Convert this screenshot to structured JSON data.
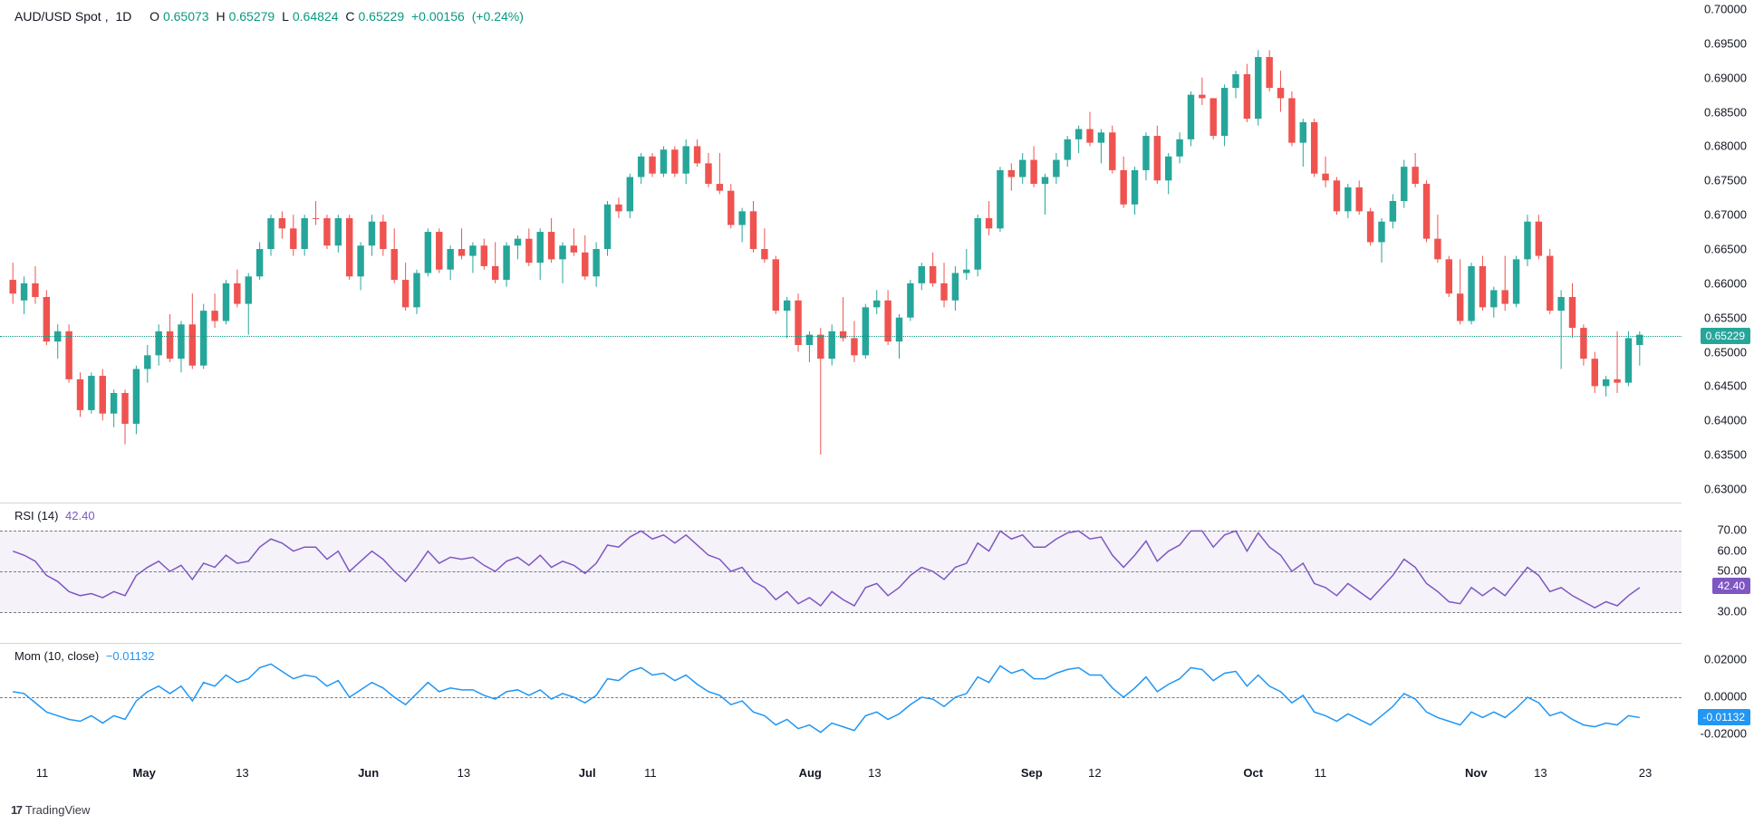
{
  "header": {
    "symbol": "AUD/USD Spot",
    "interval": "1D",
    "o_label": "O",
    "o_val": "0.65073",
    "h_label": "H",
    "h_val": "0.65279",
    "l_label": "L",
    "l_val": "0.64824",
    "c_label": "C",
    "c_val": "0.65229",
    "chg_val": "+0.00156",
    "chg_pct": "(+0.24%)"
  },
  "colors": {
    "up": "#26a69a",
    "down": "#ef5350",
    "teal": "#089981",
    "rsi": "#7e57c2",
    "mom": "#2196f3",
    "grid": "#787b86",
    "bg": "#ffffff",
    "rsi_fill": "rgba(126,87,194,0.08)"
  },
  "main": {
    "ylim": [
      0.63,
      0.7
    ],
    "yticks": [
      "0.70000",
      "0.69500",
      "0.69000",
      "0.68500",
      "0.68000",
      "0.67500",
      "0.67000",
      "0.66500",
      "0.66000",
      "0.65500",
      "0.65000",
      "0.64500",
      "0.64000",
      "0.63500",
      "0.63000"
    ],
    "current_price": "0.65229",
    "candles": [
      [
        0.6605,
        0.663,
        0.657,
        0.6585,
        "d"
      ],
      [
        0.6575,
        0.661,
        0.6555,
        0.66,
        "u"
      ],
      [
        0.66,
        0.6625,
        0.657,
        0.658,
        "d"
      ],
      [
        0.658,
        0.659,
        0.651,
        0.6515,
        "d"
      ],
      [
        0.6515,
        0.654,
        0.649,
        0.653,
        "u"
      ],
      [
        0.653,
        0.654,
        0.6455,
        0.646,
        "d"
      ],
      [
        0.646,
        0.647,
        0.6405,
        0.6415,
        "d"
      ],
      [
        0.6415,
        0.647,
        0.641,
        0.6465,
        "u"
      ],
      [
        0.6465,
        0.6475,
        0.64,
        0.641,
        "d"
      ],
      [
        0.641,
        0.6445,
        0.639,
        0.644,
        "u"
      ],
      [
        0.644,
        0.6445,
        0.6365,
        0.6395,
        "d"
      ],
      [
        0.6395,
        0.648,
        0.638,
        0.6475,
        "u"
      ],
      [
        0.6475,
        0.651,
        0.6455,
        0.6495,
        "u"
      ],
      [
        0.6495,
        0.654,
        0.648,
        0.653,
        "u"
      ],
      [
        0.653,
        0.6555,
        0.6485,
        0.649,
        "d"
      ],
      [
        0.649,
        0.6545,
        0.647,
        0.654,
        "u"
      ],
      [
        0.654,
        0.6585,
        0.6475,
        0.648,
        "d"
      ],
      [
        0.648,
        0.657,
        0.6475,
        0.656,
        "u"
      ],
      [
        0.656,
        0.6585,
        0.6535,
        0.6545,
        "d"
      ],
      [
        0.6545,
        0.6605,
        0.654,
        0.66,
        "u"
      ],
      [
        0.66,
        0.662,
        0.6565,
        0.657,
        "d"
      ],
      [
        0.657,
        0.6615,
        0.6525,
        0.661,
        "u"
      ],
      [
        0.661,
        0.666,
        0.6605,
        0.665,
        "u"
      ],
      [
        0.665,
        0.67,
        0.664,
        0.6695,
        "u"
      ],
      [
        0.6695,
        0.6705,
        0.6665,
        0.668,
        "d"
      ],
      [
        0.668,
        0.67,
        0.664,
        0.665,
        "d"
      ],
      [
        0.665,
        0.67,
        0.664,
        0.6695,
        "u"
      ],
      [
        0.6695,
        0.672,
        0.6685,
        0.6695,
        "d"
      ],
      [
        0.6695,
        0.67,
        0.665,
        0.6655,
        "d"
      ],
      [
        0.6655,
        0.67,
        0.6645,
        0.6695,
        "u"
      ],
      [
        0.6695,
        0.67,
        0.6605,
        0.661,
        "d"
      ],
      [
        0.661,
        0.666,
        0.659,
        0.6655,
        "u"
      ],
      [
        0.6655,
        0.67,
        0.664,
        0.669,
        "u"
      ],
      [
        0.669,
        0.67,
        0.664,
        0.665,
        "d"
      ],
      [
        0.665,
        0.668,
        0.66,
        0.6605,
        "d"
      ],
      [
        0.6605,
        0.663,
        0.656,
        0.6565,
        "d"
      ],
      [
        0.6565,
        0.662,
        0.6555,
        0.6615,
        "u"
      ],
      [
        0.6615,
        0.668,
        0.661,
        0.6675,
        "u"
      ],
      [
        0.6675,
        0.668,
        0.6615,
        0.662,
        "d"
      ],
      [
        0.662,
        0.6655,
        0.6605,
        0.665,
        "u"
      ],
      [
        0.665,
        0.668,
        0.6635,
        0.664,
        "d"
      ],
      [
        0.664,
        0.666,
        0.6615,
        0.6655,
        "u"
      ],
      [
        0.6655,
        0.6665,
        0.662,
        0.6625,
        "d"
      ],
      [
        0.6625,
        0.666,
        0.66,
        0.6605,
        "d"
      ],
      [
        0.6605,
        0.666,
        0.6595,
        0.6655,
        "u"
      ],
      [
        0.6655,
        0.667,
        0.6635,
        0.6665,
        "u"
      ],
      [
        0.6665,
        0.668,
        0.6625,
        0.663,
        "d"
      ],
      [
        0.663,
        0.668,
        0.6605,
        0.6675,
        "u"
      ],
      [
        0.6675,
        0.6695,
        0.663,
        0.6635,
        "d"
      ],
      [
        0.6635,
        0.666,
        0.66,
        0.6655,
        "u"
      ],
      [
        0.6655,
        0.668,
        0.664,
        0.6645,
        "d"
      ],
      [
        0.6645,
        0.667,
        0.6605,
        0.661,
        "d"
      ],
      [
        0.661,
        0.666,
        0.6595,
        0.665,
        "u"
      ],
      [
        0.665,
        0.672,
        0.664,
        0.6715,
        "u"
      ],
      [
        0.6715,
        0.6725,
        0.6695,
        0.6705,
        "d"
      ],
      [
        0.6705,
        0.676,
        0.6695,
        0.6755,
        "u"
      ],
      [
        0.6755,
        0.679,
        0.6745,
        0.6785,
        "u"
      ],
      [
        0.6785,
        0.679,
        0.6755,
        0.676,
        "d"
      ],
      [
        0.676,
        0.68,
        0.6755,
        0.6795,
        "u"
      ],
      [
        0.6795,
        0.68,
        0.6755,
        0.676,
        "d"
      ],
      [
        0.676,
        0.681,
        0.6745,
        0.68,
        "u"
      ],
      [
        0.68,
        0.681,
        0.677,
        0.6775,
        "d"
      ],
      [
        0.6775,
        0.679,
        0.674,
        0.6745,
        "d"
      ],
      [
        0.6745,
        0.679,
        0.673,
        0.6735,
        "d"
      ],
      [
        0.6735,
        0.6745,
        0.668,
        0.6685,
        "d"
      ],
      [
        0.6685,
        0.671,
        0.666,
        0.6705,
        "u"
      ],
      [
        0.6705,
        0.672,
        0.6645,
        0.665,
        "d"
      ],
      [
        0.665,
        0.668,
        0.663,
        0.6635,
        "d"
      ],
      [
        0.6635,
        0.664,
        0.6555,
        0.656,
        "d"
      ],
      [
        0.656,
        0.658,
        0.652,
        0.6575,
        "u"
      ],
      [
        0.6575,
        0.6585,
        0.65,
        0.651,
        "d"
      ],
      [
        0.651,
        0.653,
        0.6485,
        0.6525,
        "u"
      ],
      [
        0.6525,
        0.6535,
        0.635,
        0.649,
        "d"
      ],
      [
        0.649,
        0.654,
        0.648,
        0.653,
        "u"
      ],
      [
        0.653,
        0.658,
        0.6515,
        0.652,
        "d"
      ],
      [
        0.652,
        0.6545,
        0.6485,
        0.6495,
        "d"
      ],
      [
        0.6495,
        0.657,
        0.649,
        0.6565,
        "u"
      ],
      [
        0.6565,
        0.659,
        0.6555,
        0.6575,
        "u"
      ],
      [
        0.6575,
        0.659,
        0.651,
        0.6515,
        "d"
      ],
      [
        0.6515,
        0.6555,
        0.649,
        0.655,
        "u"
      ],
      [
        0.655,
        0.6605,
        0.6545,
        0.66,
        "u"
      ],
      [
        0.66,
        0.663,
        0.659,
        0.6625,
        "u"
      ],
      [
        0.6625,
        0.6645,
        0.6595,
        0.66,
        "d"
      ],
      [
        0.66,
        0.663,
        0.6565,
        0.6575,
        "d"
      ],
      [
        0.6575,
        0.6625,
        0.656,
        0.6615,
        "u"
      ],
      [
        0.6615,
        0.665,
        0.6605,
        0.662,
        "u"
      ],
      [
        0.662,
        0.67,
        0.661,
        0.6695,
        "u"
      ],
      [
        0.6695,
        0.672,
        0.667,
        0.668,
        "d"
      ],
      [
        0.668,
        0.677,
        0.6675,
        0.6765,
        "u"
      ],
      [
        0.6765,
        0.6775,
        0.6735,
        0.6755,
        "d"
      ],
      [
        0.6755,
        0.679,
        0.6745,
        0.678,
        "u"
      ],
      [
        0.678,
        0.68,
        0.674,
        0.6745,
        "d"
      ],
      [
        0.6745,
        0.676,
        0.67,
        0.6755,
        "u"
      ],
      [
        0.6755,
        0.679,
        0.6745,
        0.678,
        "u"
      ],
      [
        0.678,
        0.6815,
        0.677,
        0.681,
        "u"
      ],
      [
        0.681,
        0.683,
        0.679,
        0.6825,
        "u"
      ],
      [
        0.6825,
        0.685,
        0.68,
        0.6805,
        "d"
      ],
      [
        0.6805,
        0.6825,
        0.6775,
        0.682,
        "u"
      ],
      [
        0.682,
        0.683,
        0.676,
        0.6765,
        "d"
      ],
      [
        0.6765,
        0.6785,
        0.671,
        0.6715,
        "d"
      ],
      [
        0.6715,
        0.677,
        0.67,
        0.6765,
        "u"
      ],
      [
        0.6765,
        0.682,
        0.675,
        0.6815,
        "u"
      ],
      [
        0.6815,
        0.683,
        0.6745,
        0.675,
        "d"
      ],
      [
        0.675,
        0.679,
        0.673,
        0.6785,
        "u"
      ],
      [
        0.6785,
        0.682,
        0.6775,
        0.681,
        "u"
      ],
      [
        0.681,
        0.688,
        0.68,
        0.6875,
        "u"
      ],
      [
        0.6875,
        0.69,
        0.686,
        0.687,
        "d"
      ],
      [
        0.687,
        0.687,
        0.681,
        0.6815,
        "d"
      ],
      [
        0.6815,
        0.689,
        0.68,
        0.6885,
        "u"
      ],
      [
        0.6885,
        0.691,
        0.687,
        0.6905,
        "u"
      ],
      [
        0.6905,
        0.692,
        0.6835,
        0.684,
        "d"
      ],
      [
        0.684,
        0.694,
        0.683,
        0.693,
        "u"
      ],
      [
        0.693,
        0.694,
        0.688,
        0.6885,
        "d"
      ],
      [
        0.6885,
        0.691,
        0.685,
        0.687,
        "d"
      ],
      [
        0.687,
        0.688,
        0.68,
        0.6805,
        "d"
      ],
      [
        0.6805,
        0.684,
        0.677,
        0.6835,
        "u"
      ],
      [
        0.6835,
        0.684,
        0.6755,
        0.676,
        "d"
      ],
      [
        0.676,
        0.6785,
        0.674,
        0.675,
        "d"
      ],
      [
        0.675,
        0.6755,
        0.67,
        0.6705,
        "d"
      ],
      [
        0.6705,
        0.6745,
        0.6695,
        0.674,
        "u"
      ],
      [
        0.674,
        0.675,
        0.67,
        0.6705,
        "d"
      ],
      [
        0.6705,
        0.671,
        0.6655,
        0.666,
        "d"
      ],
      [
        0.666,
        0.6695,
        0.663,
        0.669,
        "u"
      ],
      [
        0.669,
        0.673,
        0.668,
        0.672,
        "u"
      ],
      [
        0.672,
        0.678,
        0.671,
        0.677,
        "u"
      ],
      [
        0.677,
        0.679,
        0.674,
        0.6745,
        "d"
      ],
      [
        0.6745,
        0.675,
        0.666,
        0.6665,
        "d"
      ],
      [
        0.6665,
        0.67,
        0.663,
        0.6635,
        "d"
      ],
      [
        0.6635,
        0.664,
        0.658,
        0.6585,
        "d"
      ],
      [
        0.6585,
        0.6635,
        0.654,
        0.6545,
        "d"
      ],
      [
        0.6545,
        0.663,
        0.654,
        0.6625,
        "u"
      ],
      [
        0.6625,
        0.664,
        0.656,
        0.6565,
        "d"
      ],
      [
        0.6565,
        0.6595,
        0.655,
        0.659,
        "u"
      ],
      [
        0.659,
        0.664,
        0.656,
        0.657,
        "d"
      ],
      [
        0.657,
        0.664,
        0.6565,
        0.6635,
        "u"
      ],
      [
        0.6635,
        0.67,
        0.6625,
        0.669,
        "u"
      ],
      [
        0.669,
        0.67,
        0.6635,
        0.664,
        "d"
      ],
      [
        0.664,
        0.665,
        0.6555,
        0.656,
        "d"
      ],
      [
        0.656,
        0.659,
        0.6475,
        0.658,
        "u"
      ],
      [
        0.658,
        0.66,
        0.652,
        0.6535,
        "d"
      ],
      [
        0.6535,
        0.654,
        0.648,
        0.649,
        "d"
      ],
      [
        0.649,
        0.65,
        0.644,
        0.645,
        "d"
      ],
      [
        0.645,
        0.6465,
        0.6435,
        0.646,
        "u"
      ],
      [
        0.646,
        0.653,
        0.644,
        0.6455,
        "d"
      ],
      [
        0.6455,
        0.653,
        0.645,
        0.652,
        "u"
      ],
      [
        0.651,
        0.653,
        0.648,
        0.6525,
        "u"
      ]
    ]
  },
  "rsi": {
    "label": "RSI (14)",
    "value": "42.40",
    "ylim": [
      20,
      80
    ],
    "yticks": [
      "70.00",
      "60.00",
      "50.00",
      "30.00"
    ],
    "bands": [
      30,
      70
    ],
    "mid": 50,
    "data": [
      60,
      58,
      55,
      48,
      45,
      40,
      38,
      39,
      37,
      40,
      38,
      48,
      52,
      55,
      50,
      53,
      46,
      54,
      52,
      58,
      54,
      55,
      62,
      66,
      64,
      60,
      62,
      62,
      56,
      60,
      50,
      55,
      60,
      56,
      50,
      45,
      52,
      60,
      54,
      57,
      56,
      57,
      53,
      50,
      55,
      57,
      53,
      58,
      52,
      55,
      53,
      49,
      54,
      63,
      62,
      67,
      70,
      66,
      68,
      64,
      68,
      63,
      58,
      56,
      50,
      52,
      45,
      42,
      36,
      40,
      34,
      37,
      33,
      40,
      36,
      33,
      42,
      44,
      38,
      42,
      48,
      52,
      50,
      46,
      52,
      54,
      64,
      60,
      70,
      66,
      68,
      62,
      62,
      66,
      69,
      70,
      66,
      67,
      58,
      52,
      58,
      65,
      55,
      60,
      63,
      70,
      70,
      62,
      68,
      70,
      60,
      69,
      62,
      58,
      50,
      54,
      44,
      42,
      38,
      44,
      40,
      36,
      42,
      48,
      56,
      52,
      44,
      40,
      35,
      34,
      42,
      38,
      42,
      38,
      45,
      52,
      48,
      40,
      42,
      38,
      35,
      32,
      35,
      33,
      38,
      42
    ]
  },
  "mom": {
    "label": "Mom (10, close)",
    "value": "−0.01132",
    "ylim": [
      -0.025,
      0.025
    ],
    "yticks": [
      "0.02000",
      "0.00000",
      "-0.02000"
    ],
    "mid": 0,
    "current": "-0.01132",
    "data": [
      0.003,
      0.002,
      -0.003,
      -0.008,
      -0.01,
      -0.012,
      -0.013,
      -0.01,
      -0.014,
      -0.01,
      -0.012,
      -0.002,
      0.003,
      0.006,
      0.002,
      0.006,
      -0.002,
      0.008,
      0.006,
      0.012,
      0.008,
      0.01,
      0.016,
      0.018,
      0.014,
      0.01,
      0.012,
      0.011,
      0.006,
      0.009,
      0.0,
      0.004,
      0.008,
      0.005,
      0.0,
      -0.004,
      0.002,
      0.008,
      0.003,
      0.005,
      0.004,
      0.004,
      0.001,
      -0.001,
      0.003,
      0.004,
      0.001,
      0.004,
      -0.001,
      0.002,
      0.0,
      -0.003,
      0.001,
      0.01,
      0.009,
      0.014,
      0.016,
      0.012,
      0.013,
      0.009,
      0.012,
      0.007,
      0.003,
      0.001,
      -0.004,
      -0.002,
      -0.008,
      -0.01,
      -0.015,
      -0.012,
      -0.017,
      -0.015,
      -0.019,
      -0.014,
      -0.016,
      -0.018,
      -0.01,
      -0.008,
      -0.012,
      -0.009,
      -0.004,
      0.0,
      -0.001,
      -0.005,
      0.0,
      0.002,
      0.011,
      0.008,
      0.017,
      0.013,
      0.015,
      0.01,
      0.01,
      0.013,
      0.015,
      0.016,
      0.012,
      0.012,
      0.005,
      0.0,
      0.005,
      0.011,
      0.003,
      0.007,
      0.01,
      0.016,
      0.015,
      0.009,
      0.013,
      0.014,
      0.006,
      0.012,
      0.006,
      0.003,
      -0.003,
      0.001,
      -0.008,
      -0.01,
      -0.013,
      -0.009,
      -0.012,
      -0.015,
      -0.01,
      -0.005,
      0.002,
      -0.001,
      -0.008,
      -0.011,
      -0.013,
      -0.015,
      -0.008,
      -0.011,
      -0.008,
      -0.011,
      -0.006,
      0.0,
      -0.003,
      -0.01,
      -0.008,
      -0.012,
      -0.015,
      -0.016,
      -0.014,
      -0.015,
      -0.01,
      -0.011
    ]
  },
  "x_axis": {
    "ticks": [
      {
        "pos": 0.026,
        "label": "11",
        "bold": false
      },
      {
        "pos": 0.102,
        "label": "May",
        "bold": true
      },
      {
        "pos": 0.175,
        "label": "13",
        "bold": false
      },
      {
        "pos": 0.269,
        "label": "Jun",
        "bold": true
      },
      {
        "pos": 0.34,
        "label": "13",
        "bold": false
      },
      {
        "pos": 0.432,
        "label": "Jul",
        "bold": true
      },
      {
        "pos": 0.479,
        "label": "11",
        "bold": false
      },
      {
        "pos": 0.598,
        "label": "Aug",
        "bold": true
      },
      {
        "pos": 0.646,
        "label": "13",
        "bold": false
      },
      {
        "pos": 0.763,
        "label": "Sep",
        "bold": true
      },
      {
        "pos": 0.81,
        "label": "12",
        "bold": false
      },
      {
        "pos": 0.928,
        "label": "Oct",
        "bold": true
      },
      {
        "pos": 0.978,
        "label": "11",
        "bold": false
      },
      {
        "pos": 1.094,
        "label": "Nov",
        "bold": true
      },
      {
        "pos": 1.142,
        "label": "13",
        "bold": false
      },
      {
        "pos": 1.22,
        "label": "23",
        "bold": false
      }
    ]
  },
  "watermark": "TradingView"
}
